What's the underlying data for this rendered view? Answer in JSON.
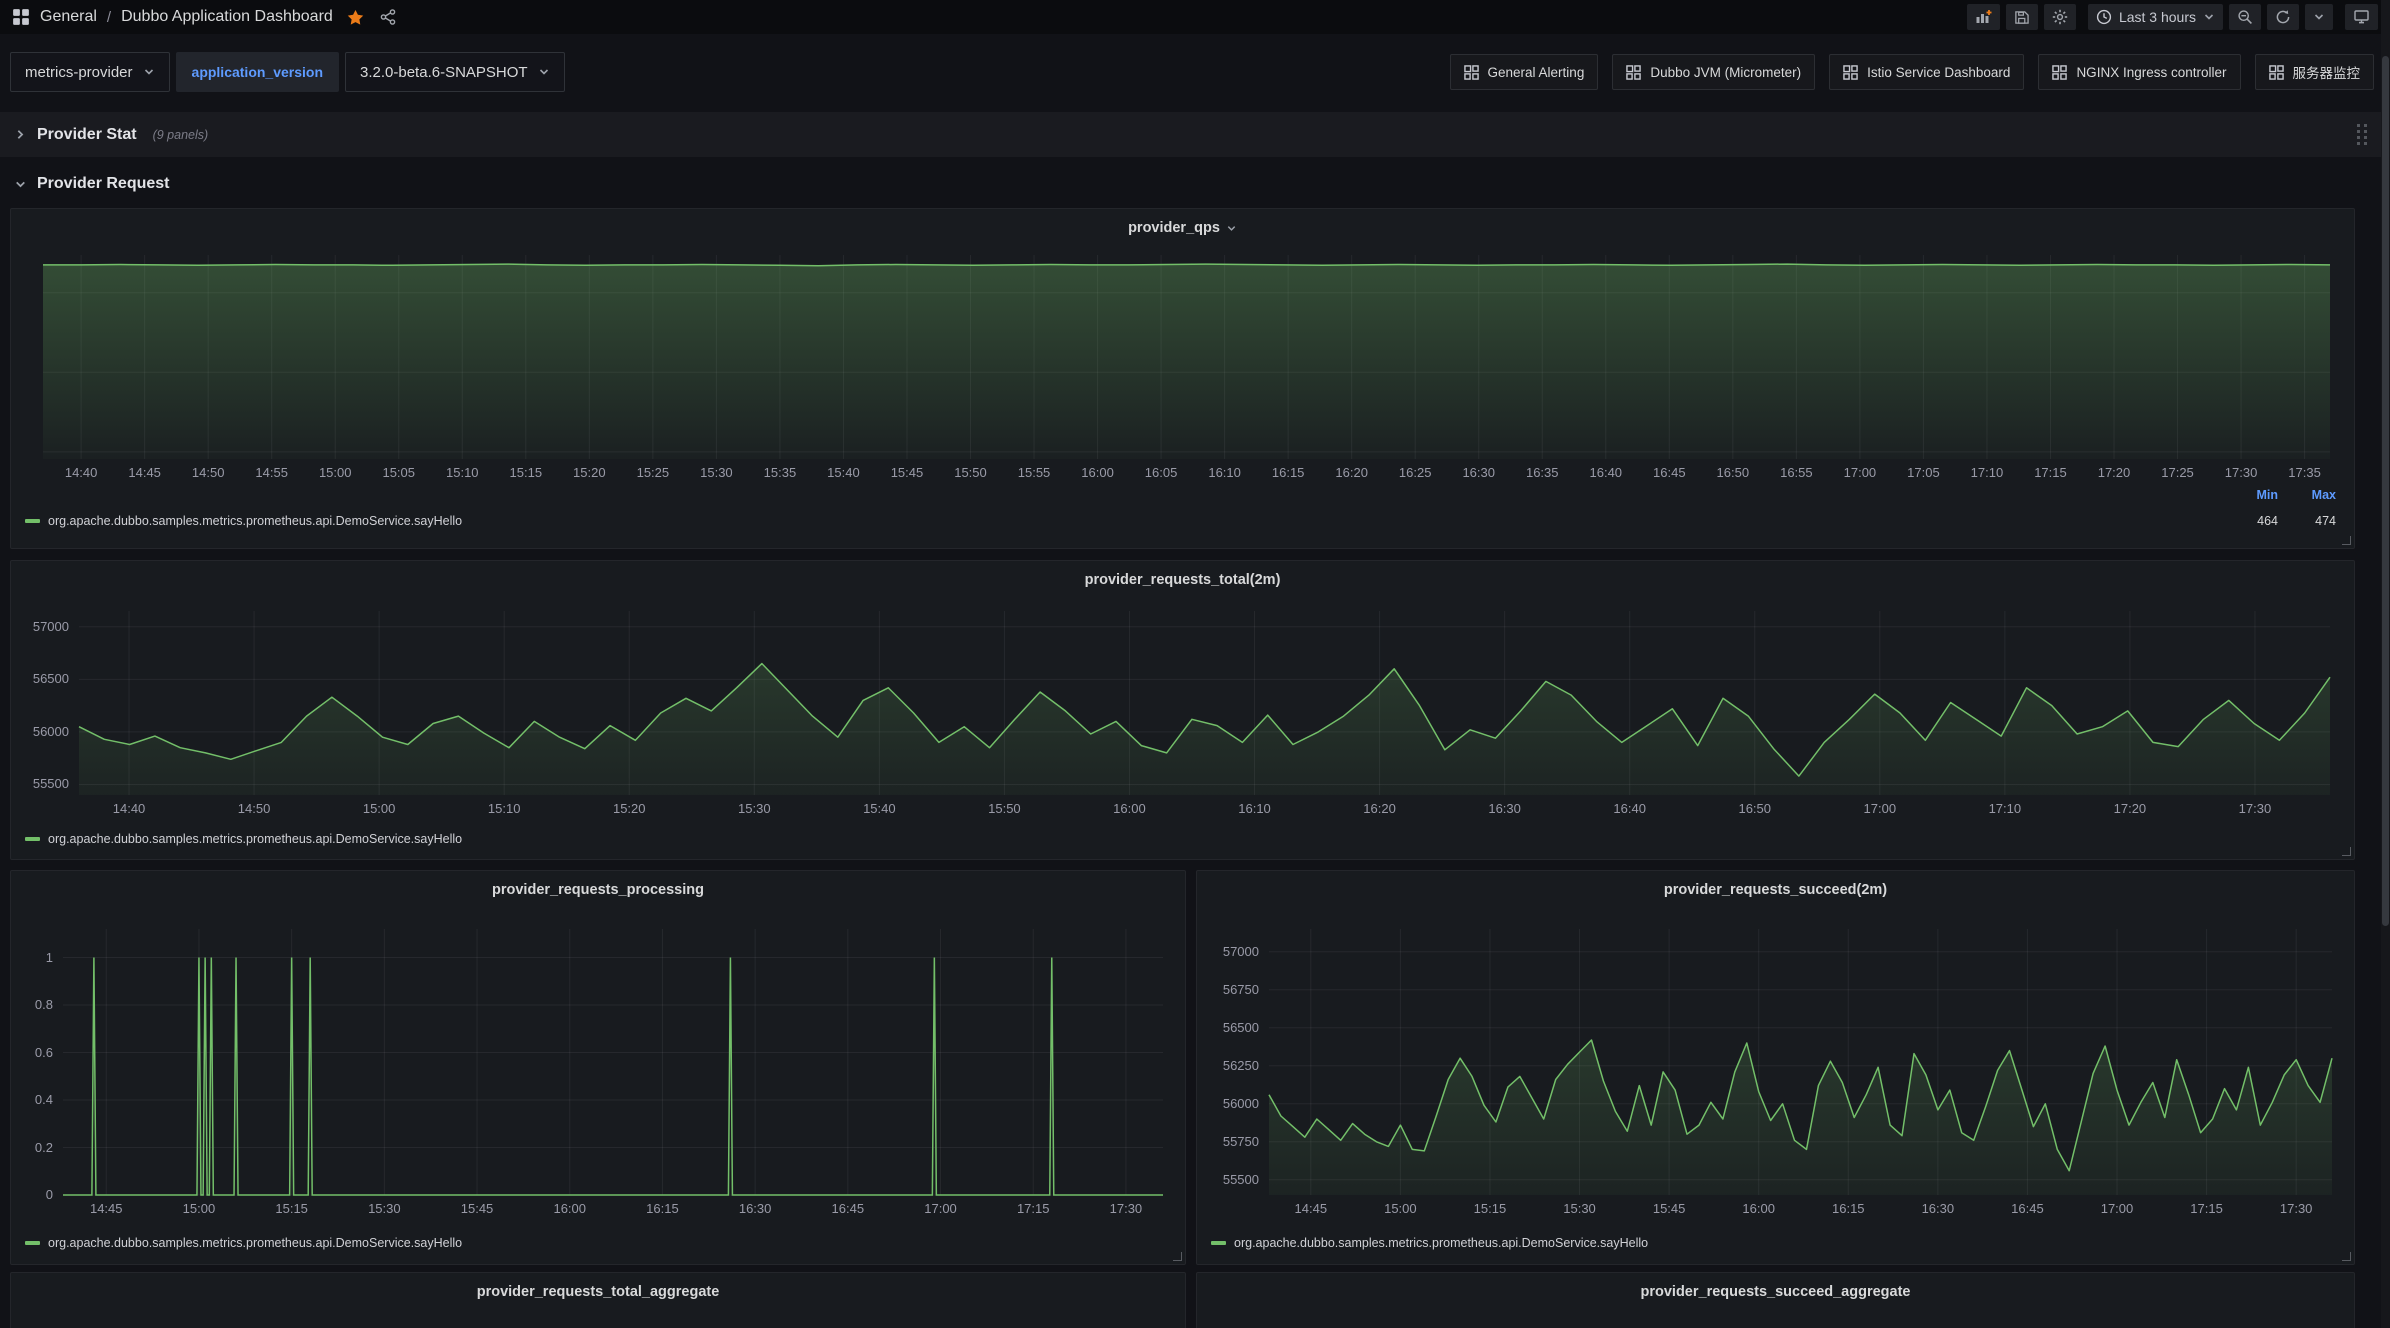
{
  "header": {
    "breadcrumb": {
      "section": "General",
      "separator": "/",
      "title": "Dubbo Application Dashboard"
    },
    "time_picker_label": "Last 3 hours"
  },
  "variables": {
    "provider_value": "metrics-provider",
    "app_version_label": "application_version",
    "app_version_value": "3.2.0-beta.6-SNAPSHOT"
  },
  "links": [
    {
      "label": "General Alerting"
    },
    {
      "label": "Dubbo JVM (Micrometer)"
    },
    {
      "label": "Istio Service Dashboard"
    },
    {
      "label": "NGINX Ingress controller"
    },
    {
      "label": "服务器监控"
    }
  ],
  "rows": {
    "provider_stat": {
      "title": "Provider Stat",
      "count": "(9 panels)"
    },
    "provider_request": {
      "title": "Provider Request"
    }
  },
  "series_label": "org.apache.dubbo.samples.metrics.prometheus.api.DemoService.sayHello",
  "panels": {
    "qps": {
      "title": "provider_qps",
      "min_label": "Min",
      "max_label": "Max",
      "min": "464",
      "max": "474"
    },
    "total2m": {
      "title": "provider_requests_total(2m)"
    },
    "processing": {
      "title": "provider_requests_processing"
    },
    "succeed2m": {
      "title": "provider_requests_succeed(2m)"
    },
    "total_agg": {
      "title": "provider_requests_total_aggregate"
    },
    "succeed_agg": {
      "title": "provider_requests_succeed_aggregate"
    }
  },
  "colors": {
    "green": "#73BF69",
    "blue": "#5E9BFF",
    "orange": "#EB7B18"
  },
  "chart_data": [
    {
      "id": "qps",
      "type": "area",
      "title": "provider_qps",
      "series": "org.apache.dubbo.samples.metrics.prometheus.api.DemoService.sayHello",
      "stats": {
        "min": 464,
        "max": 474
      },
      "t_start": "14:37",
      "t_end": "17:37",
      "x_ticks": [
        "14:40",
        "14:45",
        "14:50",
        "14:55",
        "15:00",
        "15:05",
        "15:10",
        "15:15",
        "15:20",
        "15:25",
        "15:30",
        "15:35",
        "15:40",
        "15:45",
        "15:50",
        "15:55",
        "16:00",
        "16:05",
        "16:10",
        "16:15",
        "16:20",
        "16:25",
        "16:30",
        "16:35",
        "16:40",
        "16:45",
        "16:50",
        "16:55",
        "17:00",
        "17:05",
        "17:10",
        "17:15",
        "17:20",
        "17:25",
        "17:30",
        "17:35"
      ],
      "y_ticks": [
        400,
        200,
        0
      ],
      "show_y_labels": false,
      "ylim": [
        -18,
        495
      ],
      "fill": [
        0.3,
        0.03
      ],
      "values": [
        470,
        470,
        471,
        470,
        469,
        470,
        471,
        470,
        470,
        469,
        470,
        471,
        472,
        470,
        469,
        470,
        470,
        471,
        470,
        469,
        468,
        470,
        471,
        470,
        469,
        470,
        471,
        470,
        470,
        471,
        472,
        471,
        470,
        469,
        470,
        471,
        470,
        469,
        470,
        470,
        471,
        470,
        469,
        470,
        471,
        472,
        470,
        469,
        470,
        471,
        470,
        469,
        470,
        471,
        470,
        470,
        469,
        470,
        471,
        470
      ]
    },
    {
      "id": "total2m",
      "type": "area",
      "title": "provider_requests_total(2m)",
      "series": "org.apache.dubbo.samples.metrics.prometheus.api.DemoService.sayHello",
      "t_start": "14:36",
      "t_end": "17:36",
      "x_ticks": [
        "14:40",
        "14:50",
        "15:00",
        "15:10",
        "15:20",
        "15:30",
        "15:40",
        "15:50",
        "16:00",
        "16:10",
        "16:20",
        "16:30",
        "16:40",
        "16:50",
        "17:00",
        "17:10",
        "17:20",
        "17:30"
      ],
      "y_ticks": [
        57000,
        56500,
        56000,
        55500
      ],
      "show_y_labels": true,
      "ylim": [
        55400,
        57150
      ],
      "fill": [
        0.18,
        0.05
      ],
      "values": [
        56050,
        55930,
        55880,
        55960,
        55850,
        55800,
        55740,
        55820,
        55900,
        56150,
        56330,
        56150,
        55950,
        55880,
        56080,
        56150,
        55990,
        55850,
        56100,
        55950,
        55840,
        56060,
        55920,
        56180,
        56320,
        56200,
        56420,
        56650,
        56400,
        56150,
        55950,
        56300,
        56420,
        56180,
        55900,
        56050,
        55850,
        56120,
        56380,
        56200,
        55980,
        56100,
        55870,
        55800,
        56120,
        56060,
        55900,
        56160,
        55880,
        56000,
        56150,
        56350,
        56600,
        56250,
        55830,
        56020,
        55940,
        56200,
        56480,
        56350,
        56100,
        55900,
        56060,
        56220,
        55870,
        56320,
        56150,
        55840,
        55580,
        55900,
        56120,
        56360,
        56180,
        55920,
        56280,
        56120,
        55960,
        56420,
        56250,
        55980,
        56050,
        56200,
        55900,
        55860,
        56120,
        56300,
        56080,
        55920,
        56180,
        56520
      ]
    },
    {
      "id": "processing",
      "type": "spike-line",
      "title": "provider_requests_processing",
      "series": "org.apache.dubbo.samples.metrics.prometheus.api.DemoService.sayHello",
      "t_start": "14:38",
      "t_end": "17:36",
      "x_ticks": [
        "14:45",
        "15:00",
        "15:15",
        "15:30",
        "15:45",
        "16:00",
        "16:15",
        "16:30",
        "16:45",
        "17:00",
        "17:15",
        "17:30"
      ],
      "y_ticks": [
        1,
        0.8,
        0.6,
        0.4,
        0.2,
        0
      ],
      "show_y_labels": true,
      "ylim": [
        0,
        1.12
      ],
      "baseline": 0,
      "spike_value": 1,
      "spike_times": [
        "14:43",
        "15:00",
        "15:01",
        "15:02",
        "15:06",
        "15:15",
        "15:18",
        "16:26",
        "16:59",
        "17:18"
      ]
    },
    {
      "id": "succeed2m",
      "type": "area",
      "title": "provider_requests_succeed(2m)",
      "series": "org.apache.dubbo.samples.metrics.prometheus.api.DemoService.sayHello",
      "t_start": "14:38",
      "t_end": "17:36",
      "x_ticks": [
        "14:45",
        "15:00",
        "15:15",
        "15:30",
        "15:45",
        "16:00",
        "16:15",
        "16:30",
        "16:45",
        "17:00",
        "17:15",
        "17:30"
      ],
      "y_ticks": [
        57000,
        56750,
        56500,
        56250,
        56000,
        55750,
        55500
      ],
      "show_y_labels": true,
      "ylim": [
        55400,
        57150
      ],
      "fill": [
        0.18,
        0.05
      ],
      "values": [
        56060,
        55920,
        55850,
        55780,
        55900,
        55830,
        55760,
        55870,
        55800,
        55750,
        55720,
        55860,
        55700,
        55690,
        55920,
        56160,
        56300,
        56180,
        55990,
        55880,
        56110,
        56180,
        56040,
        55900,
        56160,
        56260,
        56340,
        56420,
        56150,
        55950,
        55820,
        56120,
        55860,
        56210,
        56090,
        55800,
        55860,
        56010,
        55900,
        56210,
        56400,
        56080,
        55890,
        56000,
        55760,
        55700,
        56120,
        56280,
        56140,
        55910,
        56060,
        56240,
        55860,
        55790,
        56330,
        56190,
        55960,
        56090,
        55810,
        55760,
        55980,
        56220,
        56350,
        56100,
        55850,
        56000,
        55700,
        55560,
        55880,
        56200,
        56380,
        56090,
        55860,
        56010,
        56140,
        55910,
        56290,
        56060,
        55810,
        55900,
        56100,
        55960,
        56240,
        55860,
        56010,
        56190,
        56290,
        56120,
        56010,
        56300
      ]
    }
  ]
}
